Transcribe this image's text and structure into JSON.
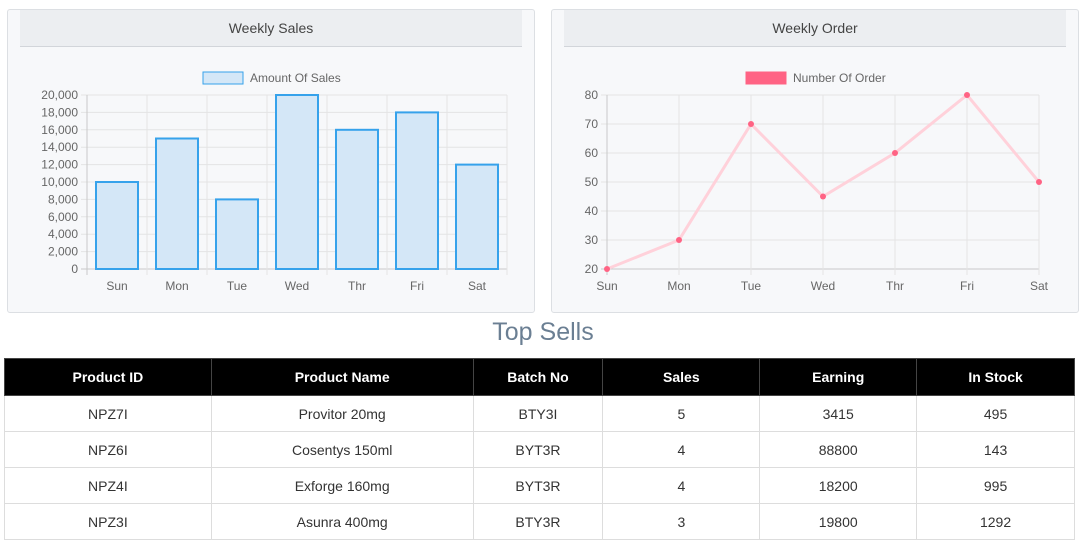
{
  "panels": {
    "weekly_sales_title": "Weekly Sales",
    "weekly_order_title": "Weekly Order"
  },
  "chart_data": [
    {
      "type": "bar",
      "title": "Weekly Sales",
      "categories": [
        "Sun",
        "Mon",
        "Tue",
        "Wed",
        "Thr",
        "Fri",
        "Sat"
      ],
      "series": [
        {
          "name": "Amount Of Sales",
          "values": [
            10000,
            15000,
            8000,
            20000,
            16000,
            18000,
            12000
          ]
        }
      ],
      "y_ticks": [
        "0",
        "2,000",
        "4,000",
        "6,000",
        "8,000",
        "10,000",
        "12,000",
        "14,000",
        "16,000",
        "18,000",
        "20,000"
      ],
      "ylim": [
        0,
        20000
      ],
      "grid": true,
      "legend": "top",
      "colors": {
        "fill": "#d4e7f7",
        "stroke": "#36a2eb"
      }
    },
    {
      "type": "line",
      "title": "Weekly Order",
      "categories": [
        "Sun",
        "Mon",
        "Tue",
        "Wed",
        "Thr",
        "Fri",
        "Sat"
      ],
      "series": [
        {
          "name": "Number Of Order",
          "values": [
            20,
            30,
            70,
            45,
            60,
            80,
            50
          ]
        }
      ],
      "y_ticks": [
        "20",
        "30",
        "40",
        "50",
        "60",
        "70",
        "80"
      ],
      "ylim": [
        20,
        80
      ],
      "grid": true,
      "legend": "top",
      "colors": {
        "line": "#ffd1da",
        "point": "#ff6384",
        "legend_swatch": "#ff6384"
      }
    }
  ],
  "top_sells": {
    "title": "Top Sells",
    "columns": [
      "Product ID",
      "Product Name",
      "Batch No",
      "Sales",
      "Earning",
      "In Stock"
    ],
    "rows": [
      [
        "NPZ7I",
        "Provitor 20mg",
        "BTY3I",
        "5",
        "3415",
        "495"
      ],
      [
        "NPZ6I",
        "Cosentys 150ml",
        "BYT3R",
        "4",
        "88800",
        "143"
      ],
      [
        "NPZ4I",
        "Exforge 160mg",
        "BYT3R",
        "4",
        "18200",
        "995"
      ],
      [
        "NPZ3I",
        "Asunra 400mg",
        "BTY3R",
        "3",
        "19800",
        "1292"
      ]
    ]
  }
}
